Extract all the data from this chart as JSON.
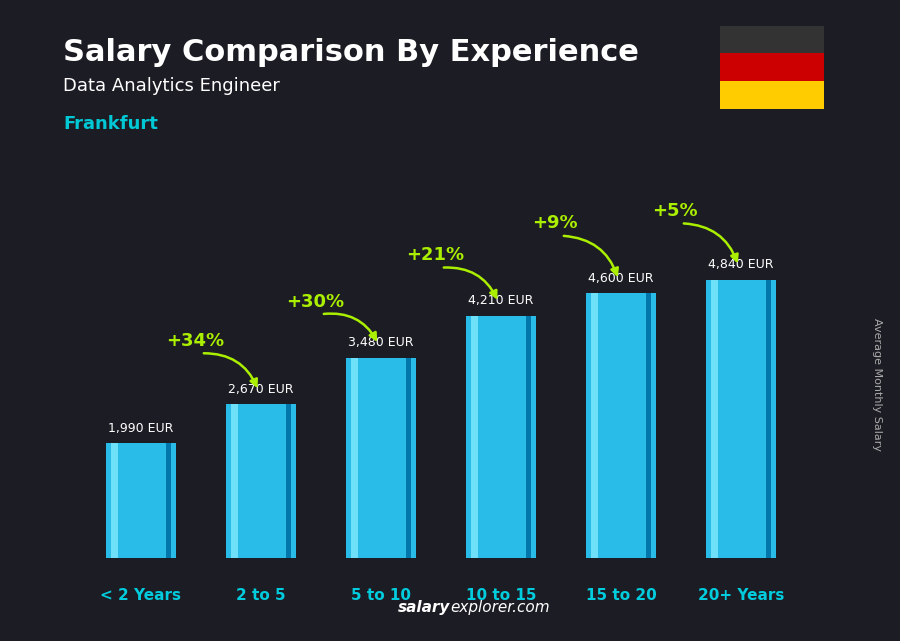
{
  "title": "Salary Comparison By Experience",
  "subtitle": "Data Analytics Engineer",
  "city": "Frankfurt",
  "categories": [
    "< 2 Years",
    "2 to 5",
    "5 to 10",
    "10 to 15",
    "15 to 20",
    "20+ Years"
  ],
  "values": [
    1990,
    2670,
    3480,
    4210,
    4600,
    4840
  ],
  "value_labels": [
    "1,990 EUR",
    "2,670 EUR",
    "3,480 EUR",
    "4,210 EUR",
    "4,600 EUR",
    "4,840 EUR"
  ],
  "pct_annotations": [
    {
      "pct": "+34%",
      "from_bar": 0,
      "to_bar": 1
    },
    {
      "pct": "+30%",
      "from_bar": 1,
      "to_bar": 2
    },
    {
      "pct": "+21%",
      "from_bar": 2,
      "to_bar": 3
    },
    {
      "pct": "+9%",
      "from_bar": 3,
      "to_bar": 4
    },
    {
      "pct": "+5%",
      "from_bar": 4,
      "to_bar": 5
    }
  ],
  "bar_main_color": "#29bce8",
  "bar_highlight_color": "#6ee0f8",
  "bar_shadow_color": "#0077aa",
  "bg_color": "#1c1c24",
  "title_color": "#ffffff",
  "subtitle_color": "#ffffff",
  "city_color": "#00c8d4",
  "pct_color": "#aaee00",
  "value_color": "#ffffff",
  "xticklabel_color": "#00ccdd",
  "footer_salary_color": "#ffffff",
  "footer_explorer_color": "#aaaaaa",
  "side_label_color": "#aaaaaa",
  "ylim_max": 5800,
  "bar_width": 0.58,
  "flag_colors": [
    "#333333",
    "#cc0000",
    "#ffcc00"
  ],
  "footer_salary": "salary",
  "footer_rest": "explorer.com",
  "source_label": "Average Monthly Salary"
}
